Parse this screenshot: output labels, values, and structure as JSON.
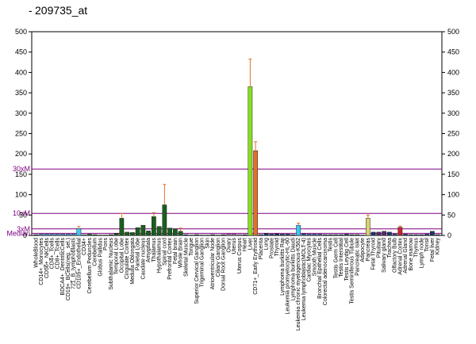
{
  "chart_data": {
    "type": "bar",
    "title": "209735_at",
    "ylim": [
      0,
      500
    ],
    "yticks": [
      0,
      50,
      100,
      150,
      200,
      250,
      300,
      350,
      400,
      450,
      500
    ],
    "right_yticks": [
      0,
      50,
      100,
      150,
      200,
      250,
      300,
      350,
      400,
      450,
      500
    ],
    "grid": false,
    "reference_lines": [
      {
        "label": "30xM",
        "value": 163,
        "color": "#800080"
      },
      {
        "label": "10xM",
        "value": 54,
        "color": "#800080"
      },
      {
        "label": "3xM",
        "value": 16,
        "color": "#800080"
      },
      {
        "label": "Median",
        "value": 5,
        "color": "#800080"
      }
    ],
    "categories": [
      "WholeBlood",
      "CD14+_Monocytes",
      "CD56+_NKCells",
      "CD4+_Tcells",
      "CD8+_Tcells",
      "BDCA4+_DentriticCells",
      "CD19+_BCells(neg._sel.)",
      "721_B_lymphoblasts",
      "CD105+_Endothelial",
      "CD34+",
      "Cerebellum Peduncles",
      "Cerebellum",
      "Globus Pallidus",
      "Pons",
      "Subthalamic Nucleus",
      "Temporal Lobe",
      "Occipital Lobe",
      "Cingulate Cortex",
      "Medulla Oblongata",
      "Parietal Lobe",
      "Caudate nucleus",
      "Amygdala",
      "Thalamus",
      "Hypothalamus",
      "Spinal cord",
      "Prefrontal Cortex",
      "Fetal brain",
      "Whole Brain",
      "Skeletal Muscle",
      "Tongue",
      "Superior Cervical Ganglion",
      "Trigeminal Ganglion",
      "Skin",
      "Atrioventricular Node",
      "Ciliary Ganglion",
      "Dorsal Root Ganglion",
      "Ovary",
      "Uterus",
      "Uterus Corpus",
      "Heart",
      "Liver",
      "CD71+_Early Erythroid",
      "Placenta",
      "Lung",
      "Prostate",
      "Thyroid",
      "Lymphoma burkitts Raji",
      "Leukemia promyelocytic-HL-60",
      "Lymphoma burkitts Daudi",
      "Leukemia chronic myelogenous-K562",
      "Leukemia lymphoblastic(MOLT-4)",
      "Cardiac Myocytes",
      "Smooth Muscle",
      "Bronchial Epithelial Cells",
      "Colorectal adenocarcinoma",
      "Testis",
      "Testis Germ Cell",
      "Testis Interstitial",
      "Testis Leydig Cell",
      "Testis Seminiferous Tubule",
      "Pancreatic Islet",
      "Adipocyte",
      "Pancreas",
      "Fetal Thyroid",
      "Pituitary",
      "Salivary gland",
      "Trachea",
      "Olfactory Bulb",
      "Adrenal Cortex",
      "Adrenal Gland",
      "Bone marrow",
      "Thymus",
      "Lymph node",
      "Tonsil",
      "Fetal liver",
      "Kidney"
    ],
    "values": [
      2,
      3,
      3,
      3,
      3,
      3,
      3,
      3,
      17,
      2,
      3,
      2,
      1,
      1,
      2,
      5,
      42,
      8,
      7,
      19,
      25,
      11,
      46,
      22,
      75,
      18,
      16,
      10,
      2,
      1,
      2,
      1,
      1,
      2,
      1,
      2,
      3,
      3,
      2,
      2,
      365,
      208,
      2,
      5,
      3,
      4,
      3,
      3,
      2,
      25,
      4,
      3,
      3,
      3,
      2,
      2,
      2,
      2,
      3,
      2,
      2,
      1,
      42,
      8,
      8,
      10,
      8,
      3,
      20,
      3,
      2,
      2,
      2,
      3,
      10,
      2
    ],
    "errors": [
      0,
      0,
      0,
      0,
      0,
      0,
      0,
      0,
      5,
      0,
      0,
      0,
      0,
      0,
      0,
      0,
      12,
      0,
      0,
      0,
      0,
      0,
      10,
      0,
      50,
      0,
      0,
      8,
      0,
      0,
      0,
      0,
      0,
      0,
      0,
      0,
      0,
      0,
      0,
      0,
      68,
      22,
      0,
      0,
      0,
      0,
      0,
      0,
      0,
      5,
      0,
      0,
      0,
      0,
      0,
      0,
      0,
      0,
      0,
      0,
      0,
      0,
      8,
      0,
      0,
      0,
      0,
      0,
      3,
      0,
      0,
      0,
      0,
      0,
      0,
      0
    ],
    "colors": [
      "#1a3a6b",
      "#3a9ad9",
      "#3a9ad9",
      "#3a9ad9",
      "#3a9ad9",
      "#3a9ad9",
      "#3a9ad9",
      "#3a9ad9",
      "#3ec6f0",
      "#3a9ad9",
      "#1b5e20",
      "#1b5e20",
      "#1b5e20",
      "#1b5e20",
      "#1b5e20",
      "#1b5e20",
      "#1b5e20",
      "#1b5e20",
      "#1b5e20",
      "#1b5e20",
      "#1b5e20",
      "#1b5e20",
      "#1b5e20",
      "#1b5e20",
      "#1b5e20",
      "#1b5e20",
      "#1b5e20",
      "#1b5e20",
      "#1a3a6b",
      "#1a3a6b",
      "#1a3a6b",
      "#1a3a6b",
      "#1a3a6b",
      "#1a3a6b",
      "#1a3a6b",
      "#1a3a6b",
      "#b070c0",
      "#b070c0",
      "#b070c0",
      "#1a3a6b",
      "#88dd22",
      "#e07030",
      "#1a3a6b",
      "#1a3a6b",
      "#1a3a6b",
      "#1a3a6b",
      "#1a3a6b",
      "#1a3a6b",
      "#1a3a6b",
      "#3ec6f0",
      "#3a5ab0",
      "#3a5ab0",
      "#3a5ab0",
      "#3a5ab0",
      "#1a3a6b",
      "#1a3a6b",
      "#1a3a6b",
      "#1a3a6b",
      "#1a3a6b",
      "#1a3a6b",
      "#1a3a6b",
      "#1a3a6b",
      "#d8d078",
      "#1a3a6b",
      "#5a2a6a",
      "#5a2a6a",
      "#1a3a6b",
      "#1a3a6b",
      "#c0282a",
      "#1a3a6b",
      "#1a3a6b",
      "#1a3a6b",
      "#1a3a6b",
      "#1a3a6b",
      "#1a3a6b",
      "#1a3a6b"
    ]
  }
}
